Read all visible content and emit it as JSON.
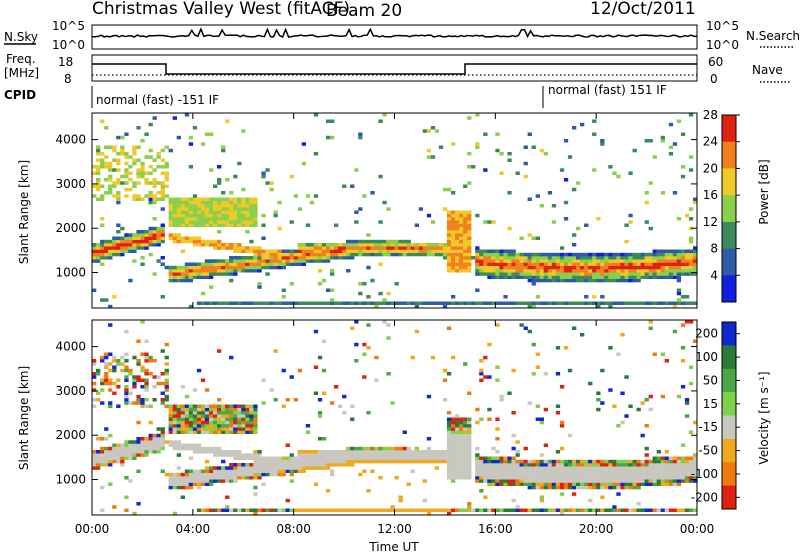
{
  "header": {
    "title": "Christmas Valley West (fitACF)",
    "beam": "Beam 20",
    "date": "12/Oct/2011"
  },
  "noise_panel": {
    "left_label": "N.Sky",
    "right_label": "N.Search",
    "top_tick": "10^5",
    "bottom_tick": "10^0"
  },
  "freq_panel": {
    "label_line1": "Freq.",
    "label_line2": "[MHz]",
    "left_ticks": [
      "18",
      "8"
    ],
    "right_ticks": [
      "60",
      "0"
    ],
    "right_label": "Nave"
  },
  "cpid": {
    "label": "CPID",
    "segments": [
      "normal (fast) -151 IF",
      "normal (fast) 151 IF"
    ]
  },
  "chart_data": [
    {
      "type": "heatmap",
      "name": "power",
      "ylabel": "Slant Range [km]",
      "yticks": [
        "1000",
        "2000",
        "3000",
        "4000"
      ],
      "ylim": [
        200,
        4600
      ],
      "colorbar_label": "Power [dB]",
      "colorbar_ticks": [
        "4",
        "8",
        "12",
        "16",
        "20",
        "24",
        "28"
      ],
      "colors": [
        "#1020e0",
        "#2f5aa8",
        "#3a8a5a",
        "#8ad04a",
        "#f0c828",
        "#f08020",
        "#e02010"
      ]
    },
    {
      "type": "heatmap",
      "name": "velocity",
      "ylabel": "Slant Range [km]",
      "yticks": [
        "1000",
        "2000",
        "3000",
        "4000"
      ],
      "ylim": [
        200,
        4600
      ],
      "colorbar_label": "Velocity [m s⁻¹]",
      "colorbar_ticks": [
        "200",
        "100",
        "50",
        "15",
        "-15",
        "-50",
        "-100",
        "-200"
      ],
      "colors": [
        "#1028d0",
        "#2a7a3a",
        "#48a848",
        "#80d048",
        "#c8c8c0",
        "#f0a820",
        "#f07a10",
        "#e02010"
      ]
    }
  ],
  "xaxis": {
    "label": "Time UT",
    "ticks": [
      "00:00",
      "04:00",
      "08:00",
      "12:00",
      "16:00",
      "20:00",
      "00:00"
    ]
  }
}
